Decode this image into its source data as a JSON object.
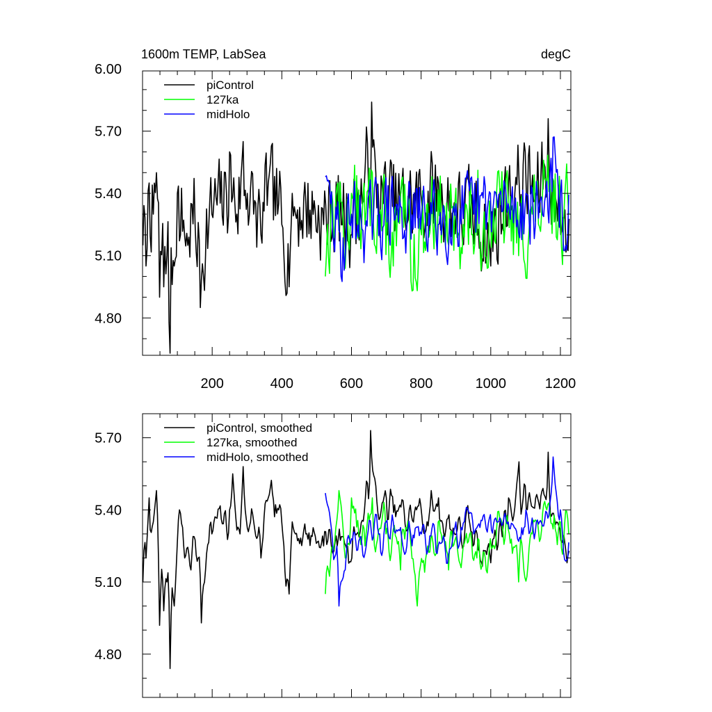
{
  "chart_data": [
    {
      "type": "line",
      "title": "1600m TEMP, LabSea",
      "units": "degC",
      "xlim": [
        0,
        1230
      ],
      "ylim": [
        4.62,
        5.99
      ],
      "x_ticks": [
        200,
        400,
        600,
        800,
        1000,
        1200
      ],
      "y_ticks": [
        4.8,
        5.1,
        5.4,
        5.7,
        6.0
      ],
      "y_tick_labels": [
        "4.80",
        "5.10",
        "5.40",
        "5.70",
        "6.00"
      ],
      "x_tick_labels": [
        "200",
        "400",
        "600",
        "800",
        "1000",
        "1200"
      ],
      "grid": false,
      "legend_position": "top-left",
      "series": [
        {
          "name": "piControl",
          "color": "#000000",
          "x_start": 1,
          "x_end": 1225,
          "seed": 7,
          "mean": 5.33,
          "amp": 0.2,
          "anchors": [
            [
              1,
              5.15
            ],
            [
              10,
              5.05
            ],
            [
              20,
              5.45
            ],
            [
              30,
              5.3
            ],
            [
              40,
              5.5
            ],
            [
              50,
              4.9
            ],
            [
              60,
              4.95
            ],
            [
              70,
              5.1
            ],
            [
              76,
              4.78
            ],
            [
              80,
              4.63
            ],
            [
              90,
              5.05
            ],
            [
              100,
              5.4
            ],
            [
              110,
              5.2
            ],
            [
              130,
              5.15
            ],
            [
              150,
              5.25
            ],
            [
              165,
              4.85
            ],
            [
              180,
              5.1
            ],
            [
              200,
              5.3
            ],
            [
              240,
              5.4
            ],
            [
              250,
              5.6
            ],
            [
              270,
              5.3
            ],
            [
              290,
              5.65
            ],
            [
              300,
              5.4
            ],
            [
              320,
              5.3
            ],
            [
              340,
              5.2
            ],
            [
              360,
              5.45
            ],
            [
              390,
              5.35
            ],
            [
              400,
              5.25
            ],
            [
              420,
              4.95
            ],
            [
              430,
              5.4
            ],
            [
              440,
              5.3
            ],
            [
              470,
              5.35
            ],
            [
              520,
              5.25
            ],
            [
              560,
              5.3
            ],
            [
              600,
              5.2
            ],
            [
              640,
              5.55
            ],
            [
              657,
              5.84
            ],
            [
              670,
              5.5
            ],
            [
              700,
              5.4
            ],
            [
              750,
              5.35
            ],
            [
              800,
              5.4
            ],
            [
              850,
              5.45
            ],
            [
              900,
              5.3
            ],
            [
              950,
              5.25
            ],
            [
              1000,
              5.05
            ],
            [
              1050,
              5.45
            ],
            [
              1100,
              5.6
            ],
            [
              1130,
              5.4
            ],
            [
              1165,
              5.76
            ],
            [
              1190,
              5.35
            ],
            [
              1220,
              5.15
            ]
          ]
        },
        {
          "name": "127ka",
          "color": "#00ff00",
          "x_start": 525,
          "x_end": 1225,
          "seed": 13,
          "mean": 5.28,
          "amp": 0.2,
          "anchors": [
            [
              525,
              5.0
            ],
            [
              540,
              5.25
            ],
            [
              560,
              5.45
            ],
            [
              580,
              5.1
            ],
            [
              600,
              5.4
            ],
            [
              640,
              5.25
            ],
            [
              660,
              5.5
            ],
            [
              680,
              5.3
            ],
            [
              720,
              5.05
            ],
            [
              760,
              5.25
            ],
            [
              775,
              4.93
            ],
            [
              800,
              5.2
            ],
            [
              840,
              5.4
            ],
            [
              880,
              5.15
            ],
            [
              920,
              5.25
            ],
            [
              960,
              5.2
            ],
            [
              1000,
              5.3
            ],
            [
              1050,
              5.35
            ],
            [
              1080,
              5.1
            ],
            [
              1120,
              5.3
            ],
            [
              1160,
              5.4
            ],
            [
              1200,
              5.35
            ],
            [
              1225,
              5.3
            ]
          ]
        },
        {
          "name": "midHolo",
          "color": "#0000ff",
          "x_start": 525,
          "x_end": 1225,
          "seed": 29,
          "mean": 5.28,
          "amp": 0.17,
          "anchors": [
            [
              525,
              5.48
            ],
            [
              540,
              5.35
            ],
            [
              570,
              5.0
            ],
            [
              600,
              5.3
            ],
            [
              640,
              5.2
            ],
            [
              680,
              5.3
            ],
            [
              720,
              5.35
            ],
            [
              760,
              5.25
            ],
            [
              800,
              5.3
            ],
            [
              850,
              5.25
            ],
            [
              900,
              5.35
            ],
            [
              950,
              5.3
            ],
            [
              1000,
              5.4
            ],
            [
              1050,
              5.35
            ],
            [
              1100,
              5.4
            ],
            [
              1140,
              5.35
            ],
            [
              1180,
              5.67
            ],
            [
              1200,
              5.4
            ],
            [
              1220,
              5.2
            ]
          ]
        }
      ]
    },
    {
      "type": "line",
      "xlim": [
        0,
        1230
      ],
      "ylim": [
        4.62,
        5.8
      ],
      "x_ticks": [
        200,
        400,
        600,
        800,
        1000,
        1200
      ],
      "y_ticks": [
        4.8,
        5.1,
        5.4,
        5.7
      ],
      "y_tick_labels": [
        "4.80",
        "5.10",
        "5.40",
        "5.70"
      ],
      "grid": false,
      "legend_position": "top-left",
      "series": [
        {
          "name": "piControl, smoothed",
          "color": "#000000",
          "x_start": 1,
          "x_end": 1225,
          "seed": 7,
          "mean": 5.33,
          "amp": 0.12,
          "smooth": true,
          "anchors": [
            [
              1,
              5.1
            ],
            [
              10,
              5.2
            ],
            [
              20,
              5.45
            ],
            [
              30,
              5.35
            ],
            [
              40,
              5.48
            ],
            [
              50,
              4.92
            ],
            [
              60,
              4.98
            ],
            [
              70,
              5.1
            ],
            [
              80,
              4.74
            ],
            [
              90,
              5.0
            ],
            [
              105,
              5.4
            ],
            [
              120,
              5.2
            ],
            [
              140,
              5.15
            ],
            [
              160,
              5.2
            ],
            [
              168,
              4.93
            ],
            [
              180,
              5.15
            ],
            [
              200,
              5.3
            ],
            [
              250,
              5.4
            ],
            [
              260,
              5.55
            ],
            [
              280,
              5.3
            ],
            [
              290,
              5.58
            ],
            [
              310,
              5.35
            ],
            [
              340,
              5.2
            ],
            [
              360,
              5.45
            ],
            [
              390,
              5.4
            ],
            [
              405,
              5.25
            ],
            [
              420,
              5.05
            ],
            [
              430,
              5.35
            ],
            [
              440,
              5.3
            ],
            [
              470,
              5.3
            ],
            [
              520,
              5.25
            ],
            [
              560,
              5.25
            ],
            [
              600,
              5.2
            ],
            [
              640,
              5.45
            ],
            [
              655,
              5.73
            ],
            [
              670,
              5.5
            ],
            [
              700,
              5.45
            ],
            [
              750,
              5.4
            ],
            [
              800,
              5.42
            ],
            [
              850,
              5.45
            ],
            [
              900,
              5.3
            ],
            [
              950,
              5.25
            ],
            [
              1000,
              5.18
            ],
            [
              1050,
              5.45
            ],
            [
              1080,
              5.6
            ],
            [
              1100,
              5.5
            ],
            [
              1130,
              5.45
            ],
            [
              1165,
              5.64
            ],
            [
              1190,
              5.35
            ],
            [
              1220,
              5.18
            ]
          ]
        },
        {
          "name": "127ka, smoothed",
          "color": "#00ff00",
          "x_start": 525,
          "x_end": 1225,
          "seed": 13,
          "mean": 5.28,
          "amp": 0.12,
          "smooth": true,
          "anchors": [
            [
              525,
              5.05
            ],
            [
              545,
              5.25
            ],
            [
              565,
              5.48
            ],
            [
              585,
              5.2
            ],
            [
              600,
              5.45
            ],
            [
              640,
              5.25
            ],
            [
              660,
              5.45
            ],
            [
              700,
              5.3
            ],
            [
              740,
              5.15
            ],
            [
              770,
              5.25
            ],
            [
              790,
              5.0
            ],
            [
              820,
              5.25
            ],
            [
              850,
              5.35
            ],
            [
              880,
              5.15
            ],
            [
              920,
              5.25
            ],
            [
              960,
              5.2
            ],
            [
              1000,
              5.28
            ],
            [
              1050,
              5.32
            ],
            [
              1080,
              5.1
            ],
            [
              1120,
              5.3
            ],
            [
              1160,
              5.4
            ],
            [
              1200,
              5.35
            ],
            [
              1225,
              5.3
            ]
          ]
        },
        {
          "name": "midHolo, smoothed",
          "color": "#0000ff",
          "x_start": 525,
          "x_end": 1225,
          "seed": 29,
          "mean": 5.28,
          "amp": 0.1,
          "smooth": true,
          "anchors": [
            [
              525,
              5.47
            ],
            [
              540,
              5.35
            ],
            [
              565,
              5.0
            ],
            [
              600,
              5.28
            ],
            [
              640,
              5.22
            ],
            [
              680,
              5.3
            ],
            [
              720,
              5.35
            ],
            [
              760,
              5.25
            ],
            [
              800,
              5.3
            ],
            [
              850,
              5.25
            ],
            [
              900,
              5.35
            ],
            [
              950,
              5.3
            ],
            [
              1000,
              5.38
            ],
            [
              1050,
              5.35
            ],
            [
              1100,
              5.4
            ],
            [
              1140,
              5.35
            ],
            [
              1178,
              5.62
            ],
            [
              1200,
              5.4
            ],
            [
              1220,
              5.2
            ]
          ]
        }
      ]
    }
  ]
}
